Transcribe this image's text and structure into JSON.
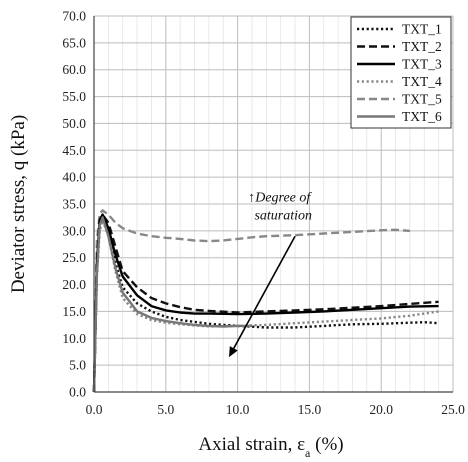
{
  "chart_data": {
    "type": "line",
    "xlabel_main": "Axial strain, ε",
    "xlabel_sub": "a",
    "xlabel_unit": " (%)",
    "ylabel": "Deviator stress, q (kPa)",
    "xlim": [
      0,
      25
    ],
    "ylim": [
      0,
      70
    ],
    "x_ticks": [
      "0.0",
      "5.0",
      "10.0",
      "15.0",
      "20.0",
      "25.0"
    ],
    "y_ticks": [
      "0.0",
      "5.0",
      "10.0",
      "15.0",
      "20.0",
      "25.0",
      "30.0",
      "35.0",
      "40.0",
      "45.0",
      "50.0",
      "55.0",
      "60.0",
      "65.0",
      "70.0"
    ],
    "grid": true,
    "legend_position": "top-right",
    "annotation": {
      "line1": "Degree of",
      "line2": "saturation",
      "arrow_glyph": "↑",
      "arrow_from": [
        14.0,
        29.0
      ],
      "arrow_to": [
        9.4,
        6.5
      ],
      "text_at": [
        12.9,
        35.5
      ]
    },
    "series": [
      {
        "name": "TXT_1",
        "color": "#111111",
        "dash": "dotted",
        "points": [
          [
            0,
            0
          ],
          [
            0.2,
            22
          ],
          [
            0.4,
            31
          ],
          [
            0.6,
            33
          ],
          [
            1.0,
            30
          ],
          [
            1.5,
            24
          ],
          [
            2.0,
            19.5
          ],
          [
            3.0,
            16.5
          ],
          [
            4.0,
            15
          ],
          [
            5.0,
            14
          ],
          [
            6.0,
            13.4
          ],
          [
            8.0,
            12.7
          ],
          [
            10.0,
            12.3
          ],
          [
            12.0,
            12
          ],
          [
            14.0,
            12
          ],
          [
            16.0,
            12.3
          ],
          [
            18.0,
            12.6
          ],
          [
            20.0,
            12.7
          ],
          [
            22.0,
            12.9
          ],
          [
            23.0,
            13
          ],
          [
            24.0,
            12.8
          ]
        ]
      },
      {
        "name": "TXT_2",
        "color": "#111111",
        "dash": "dashed",
        "points": [
          [
            0,
            0
          ],
          [
            0.2,
            24
          ],
          [
            0.4,
            32
          ],
          [
            0.6,
            33
          ],
          [
            1.0,
            31.5
          ],
          [
            1.5,
            27
          ],
          [
            2.0,
            22.5
          ],
          [
            3.0,
            19.5
          ],
          [
            4.0,
            17.5
          ],
          [
            5.0,
            16.5
          ],
          [
            6.0,
            15.8
          ],
          [
            7.0,
            15.3
          ],
          [
            8.0,
            15.1
          ],
          [
            10.0,
            14.8
          ],
          [
            12.0,
            15
          ],
          [
            14.0,
            15.2
          ],
          [
            16.0,
            15.4
          ],
          [
            18.0,
            15.7
          ],
          [
            20.0,
            16
          ],
          [
            22.0,
            16.4
          ],
          [
            23.0,
            16.6
          ],
          [
            24.0,
            16.8
          ]
        ]
      },
      {
        "name": "TXT_3",
        "color": "#000000",
        "dash": "solid",
        "points": [
          [
            0,
            0
          ],
          [
            0.2,
            24
          ],
          [
            0.4,
            32
          ],
          [
            0.6,
            33
          ],
          [
            1.0,
            30.5
          ],
          [
            1.5,
            25.5
          ],
          [
            2.0,
            21.5
          ],
          [
            3.0,
            18
          ],
          [
            4.0,
            16
          ],
          [
            5.0,
            15.2
          ],
          [
            6.0,
            14.8
          ],
          [
            7.0,
            14.6
          ],
          [
            8.0,
            14.6
          ],
          [
            10.0,
            14.5
          ],
          [
            12.0,
            14.6
          ],
          [
            14.0,
            14.8
          ],
          [
            16.0,
            15
          ],
          [
            18.0,
            15.3
          ],
          [
            20.0,
            15.6
          ],
          [
            22.0,
            15.9
          ],
          [
            24.0,
            16
          ]
        ]
      },
      {
        "name": "TXT_4",
        "color": "#888888",
        "dash": "dotted",
        "points": [
          [
            0,
            0
          ],
          [
            0.2,
            22
          ],
          [
            0.4,
            30
          ],
          [
            0.6,
            32
          ],
          [
            1.0,
            29
          ],
          [
            1.5,
            22.5
          ],
          [
            2.0,
            17.5
          ],
          [
            3.0,
            14.5
          ],
          [
            4.0,
            13.4
          ],
          [
            5.0,
            12.9
          ],
          [
            6.0,
            12.6
          ],
          [
            8.0,
            12.2
          ],
          [
            10.0,
            12.3
          ],
          [
            12.0,
            12.5
          ],
          [
            14.0,
            12.8
          ],
          [
            16.0,
            13.1
          ],
          [
            18.0,
            13.4
          ],
          [
            20.0,
            13.7
          ],
          [
            22.0,
            14.2
          ],
          [
            23.0,
            14.6
          ],
          [
            24.0,
            15
          ]
        ]
      },
      {
        "name": "TXT_5",
        "color": "#888888",
        "dash": "dashed",
        "points": [
          [
            0,
            0
          ],
          [
            0.2,
            28
          ],
          [
            0.4,
            33.2
          ],
          [
            0.6,
            33.8
          ],
          [
            1.0,
            33
          ],
          [
            1.5,
            31.5
          ],
          [
            2.0,
            30.5
          ],
          [
            3.0,
            29.5
          ],
          [
            4.0,
            29
          ],
          [
            5.0,
            28.7
          ],
          [
            6.0,
            28.5
          ],
          [
            7.0,
            28.2
          ],
          [
            8.0,
            28.1
          ],
          [
            9.0,
            28.2
          ],
          [
            10.0,
            28.5
          ],
          [
            11.0,
            28.8
          ],
          [
            12.0,
            29
          ],
          [
            14.0,
            29.2
          ],
          [
            16.0,
            29.5
          ],
          [
            18.0,
            29.8
          ],
          [
            20.0,
            30.1
          ],
          [
            21.0,
            30.2
          ],
          [
            22.0,
            30
          ]
        ]
      },
      {
        "name": "TXT_6",
        "color": "#777777",
        "dash": "solid",
        "points": [
          [
            0,
            0
          ],
          [
            0.2,
            22
          ],
          [
            0.4,
            31
          ],
          [
            0.6,
            32.5
          ],
          [
            1.0,
            29
          ],
          [
            1.5,
            23
          ],
          [
            2.0,
            18.5
          ],
          [
            3.0,
            15
          ],
          [
            4.0,
            13.8
          ],
          [
            5.0,
            13.2
          ],
          [
            6.0,
            12.8
          ],
          [
            7.0,
            12.5
          ],
          [
            8.0,
            12.3
          ],
          [
            9.0,
            12.2
          ],
          [
            10.0,
            12.3
          ],
          [
            11.0,
            12.3
          ]
        ]
      }
    ]
  }
}
